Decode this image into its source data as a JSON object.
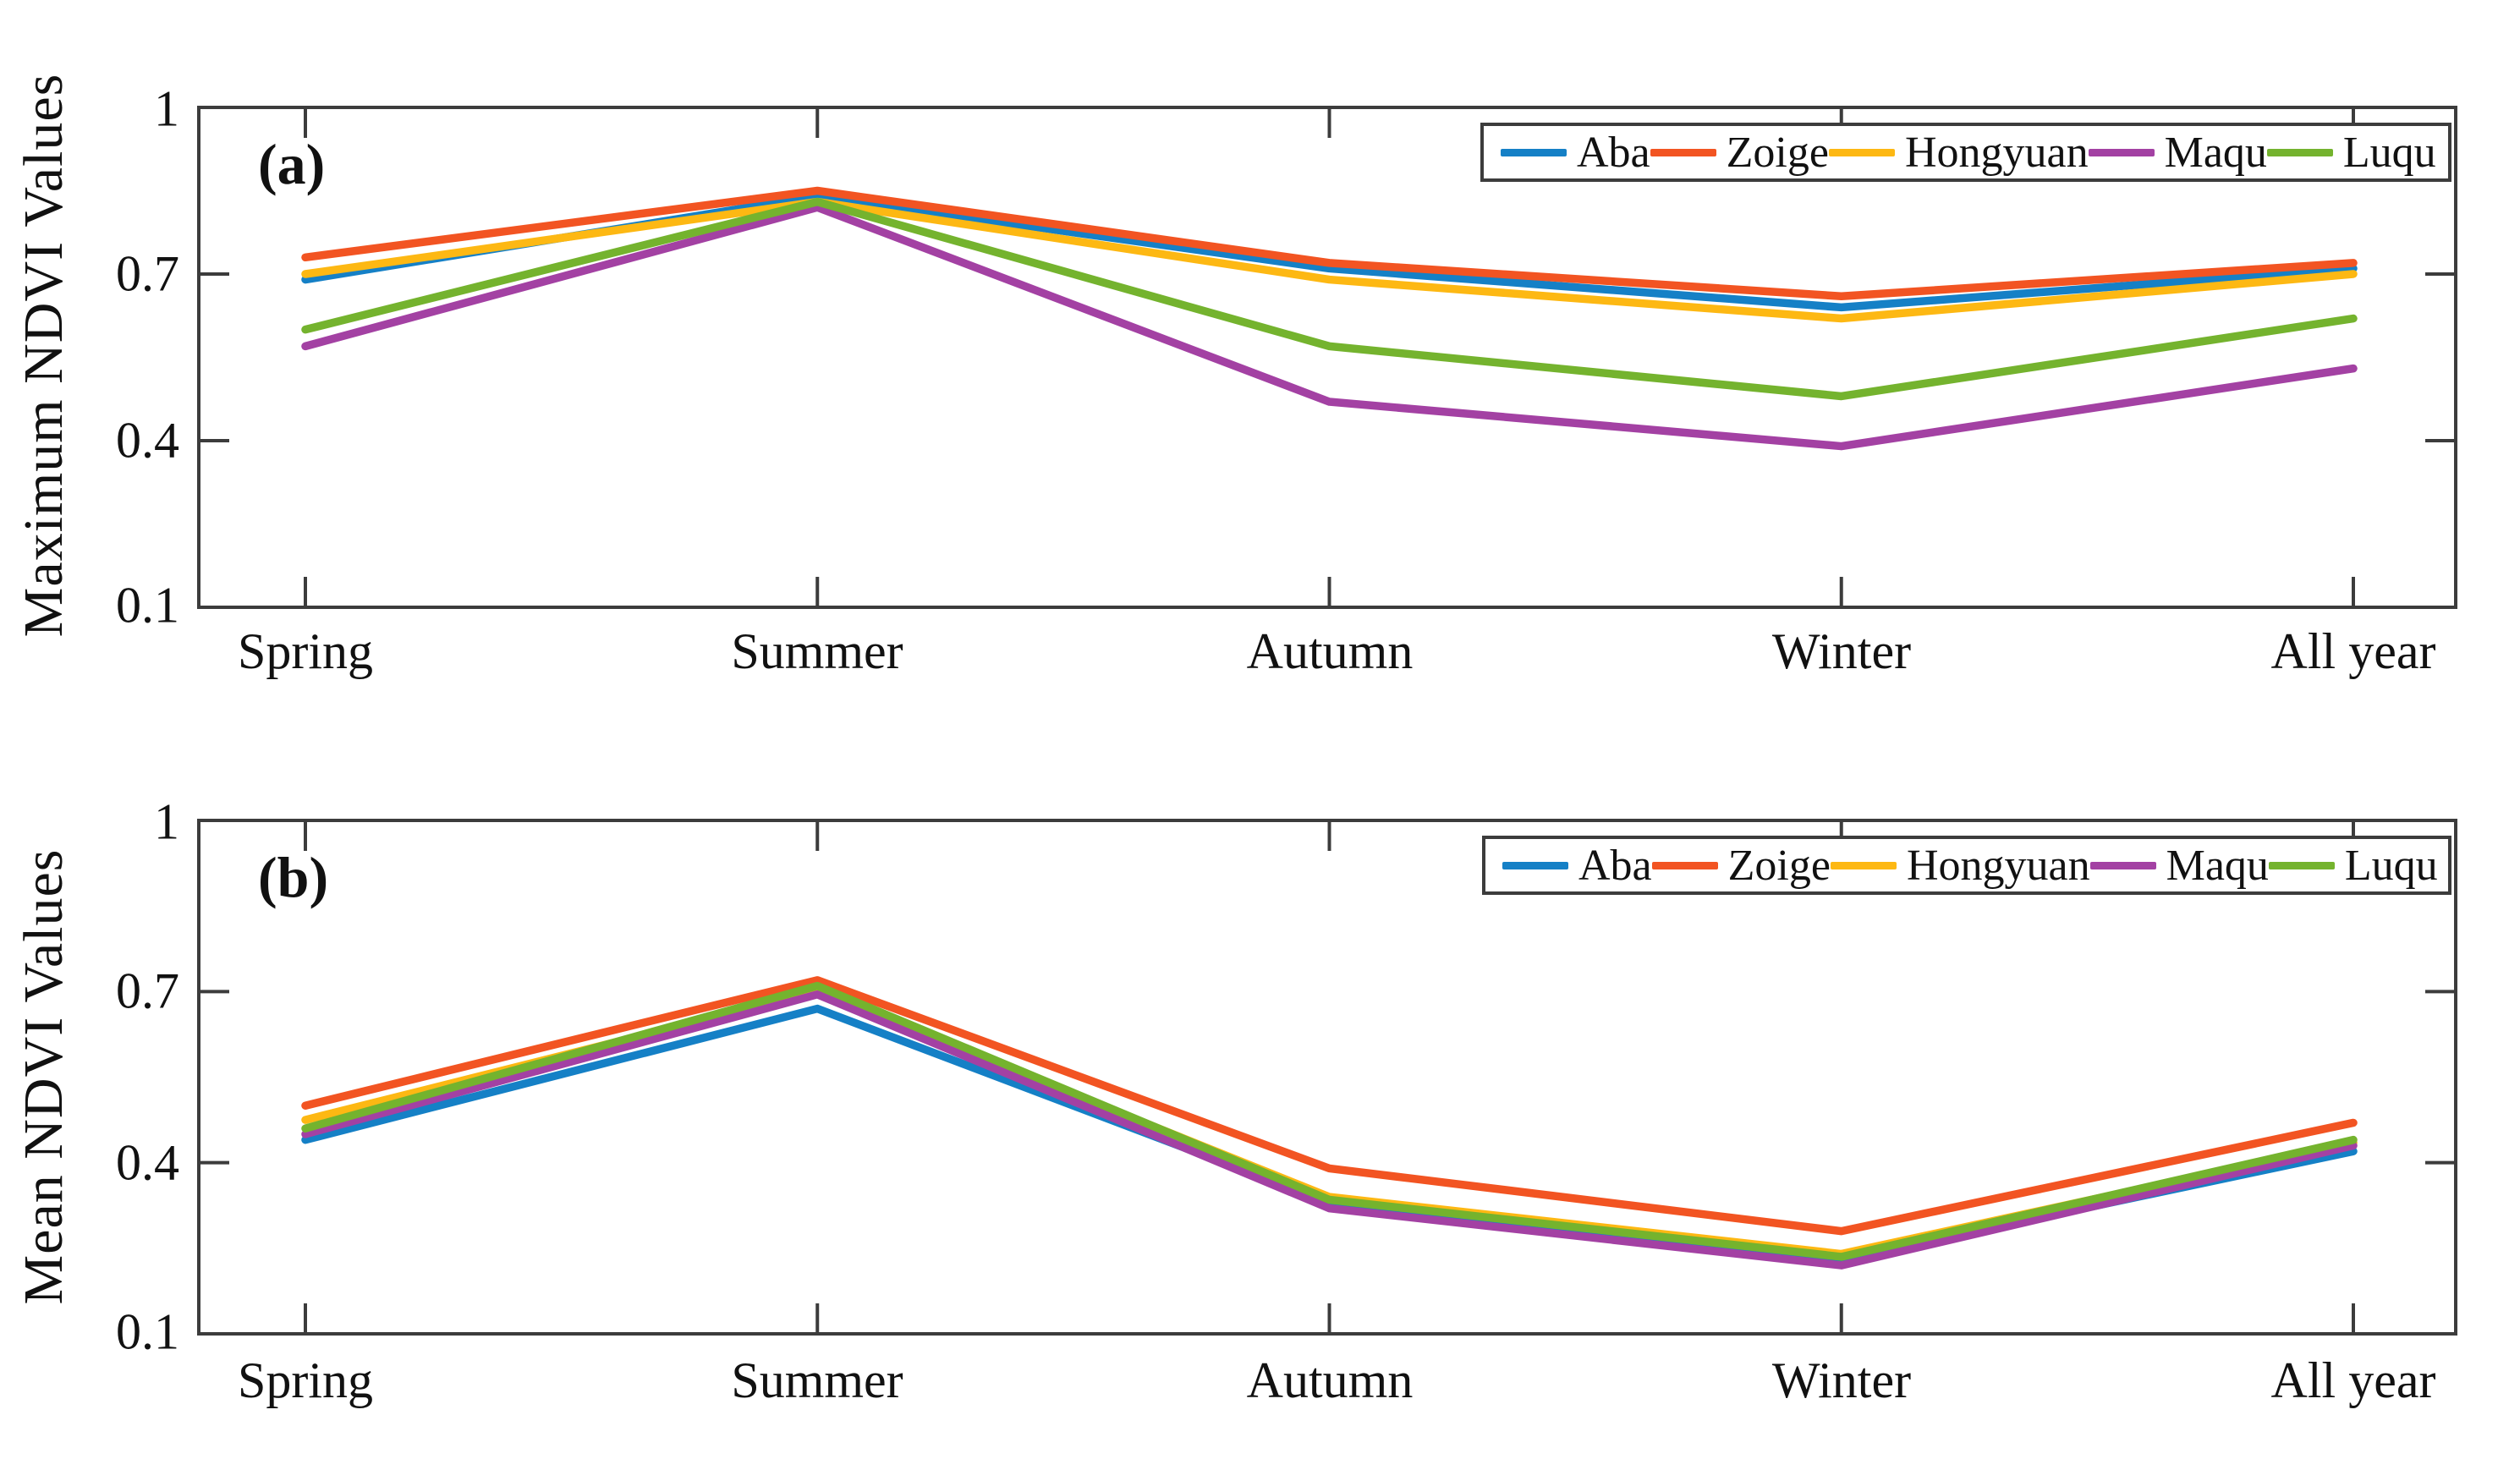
{
  "figure": {
    "background": "#ffffff",
    "axis_color": "#3c3c3c",
    "text_color": "#111111"
  },
  "chart_data": [
    {
      "type": "line",
      "panel_label": "(a)",
      "title": "",
      "xlabel": "",
      "ylabel": "Maximum NDVI Values",
      "categories": [
        "Spring",
        "Summer",
        "Autumn",
        "Winter",
        "All year"
      ],
      "ytick_labels": [
        "1",
        "0.7",
        "0.4",
        "0.1"
      ],
      "yticks": [
        1,
        0.7,
        0.4,
        0.1
      ],
      "ylim": [
        0.1,
        1
      ],
      "grid": false,
      "legend_position": "top-right",
      "series": [
        {
          "name": "Aba",
          "color": "#1580c6",
          "values": [
            0.69,
            0.84,
            0.71,
            0.64,
            0.71
          ]
        },
        {
          "name": "Zoige",
          "color": "#f25422",
          "values": [
            0.73,
            0.85,
            0.72,
            0.66,
            0.72
          ]
        },
        {
          "name": "Hongyuan",
          "color": "#fdb813",
          "values": [
            0.7,
            0.83,
            0.69,
            0.62,
            0.7
          ]
        },
        {
          "name": "Maqu",
          "color": "#a341a3",
          "values": [
            0.57,
            0.82,
            0.47,
            0.39,
            0.53
          ]
        },
        {
          "name": "Luqu",
          "color": "#74b32e",
          "values": [
            0.6,
            0.83,
            0.57,
            0.48,
            0.62
          ]
        }
      ]
    },
    {
      "type": "line",
      "panel_label": "(b)",
      "title": "",
      "xlabel": "",
      "ylabel": "Mean NDVI Values",
      "categories": [
        "Spring",
        "Summer",
        "Autumn",
        "Winter",
        "All year"
      ],
      "ytick_labels": [
        "1",
        "0.7",
        "0.4",
        "0.1"
      ],
      "yticks": [
        1,
        0.7,
        0.4,
        0.1
      ],
      "ylim": [
        0.1,
        1
      ],
      "grid": false,
      "legend_position": "top-right",
      "series": [
        {
          "name": "Aba",
          "color": "#1580c6",
          "values": [
            0.44,
            0.67,
            0.33,
            0.23,
            0.42
          ]
        },
        {
          "name": "Zoige",
          "color": "#f25422",
          "values": [
            0.5,
            0.72,
            0.39,
            0.28,
            0.47
          ]
        },
        {
          "name": "Hongyuan",
          "color": "#fdb813",
          "values": [
            0.475,
            0.7,
            0.34,
            0.24,
            0.435
          ]
        },
        {
          "name": "Maqu",
          "color": "#a341a3",
          "values": [
            0.45,
            0.695,
            0.32,
            0.22,
            0.43
          ]
        },
        {
          "name": "Luqu",
          "color": "#74b32e",
          "values": [
            0.46,
            0.71,
            0.335,
            0.235,
            0.44
          ]
        }
      ]
    }
  ]
}
